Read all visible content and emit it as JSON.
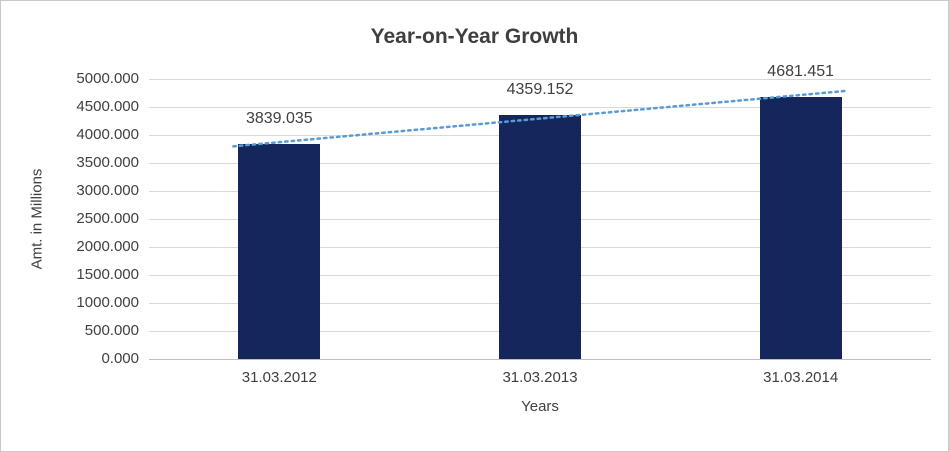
{
  "chart_data": {
    "type": "bar",
    "title": "Year-on-Year Growth",
    "xlabel": "Years",
    "ylabel": "Amt. in Millions",
    "categories": [
      "31.03.2012",
      "31.03.2013",
      "31.03.2014"
    ],
    "values": [
      3839.035,
      4359.152,
      4681.451
    ],
    "data_labels": [
      "3839.035",
      "4359.152",
      "4681.451"
    ],
    "ylim": [
      0,
      5000
    ],
    "ytick_values": [
      0,
      500,
      1000,
      1500,
      2000,
      2500,
      3000,
      3500,
      4000,
      4500,
      5000
    ],
    "ytick_labels": [
      "0.000",
      "500.000",
      "1000.000",
      "1500.000",
      "2000.000",
      "2500.000",
      "3000.000",
      "3500.000",
      "4000.000",
      "4500.000",
      "5000.000"
    ],
    "grid": true,
    "legend": false,
    "trendline": true,
    "colors": {
      "bar": "#14265c",
      "trendline": "#5b9bd5",
      "gridline": "#d9d9d9",
      "axis_line": "#bfbfbf",
      "text": "#404040",
      "frame_border": "#c9c9c9"
    }
  }
}
